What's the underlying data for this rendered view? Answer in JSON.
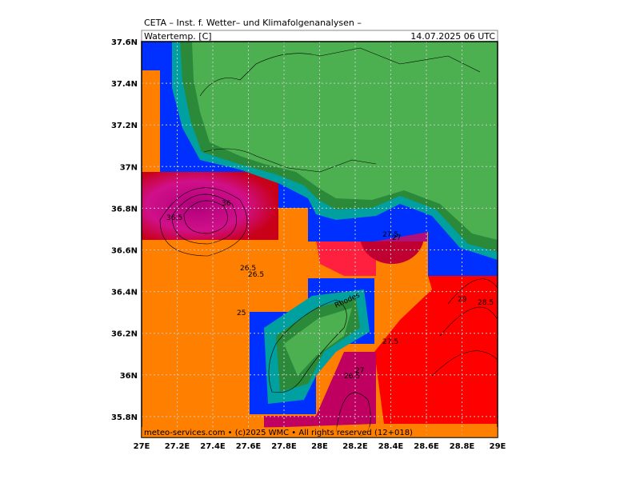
{
  "header": {
    "title": "CETA – Inst. f. Wetter– und Klimafolgenanalysen –",
    "variable": "Watertemp. [C]",
    "valid_time": "14.07.2025 06 UTC"
  },
  "map": {
    "lon_ticks": [
      "27E",
      "27.2E",
      "27.4E",
      "27.6E",
      "27.8E",
      "28E",
      "28.2E",
      "28.4E",
      "28.6E",
      "28.8E",
      "29E"
    ],
    "lat_ticks": [
      "37.6N",
      "37.4N",
      "37.2N",
      "37N",
      "36.8N",
      "36.6N",
      "36.4N",
      "36.2N",
      "36N",
      "35.8N"
    ],
    "contour_labels": [
      "36.5",
      "36",
      "26.5",
      "26.5",
      "25",
      "27.5",
      "27",
      "29",
      "28.5",
      "27.5",
      "27",
      "26.5"
    ],
    "place_label": "Rhodes"
  },
  "footer": {
    "credit": "meteo-services.com • (c)2025 WMC • All rights reserved (12+018)"
  }
}
